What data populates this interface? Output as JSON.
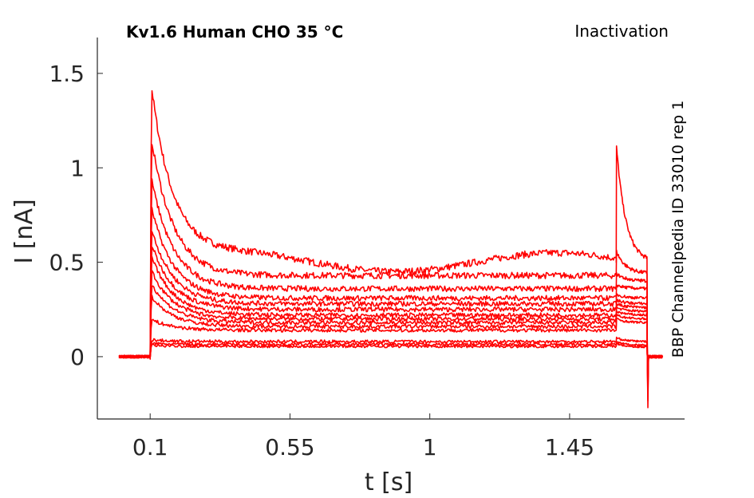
{
  "chart_data": {
    "type": "line",
    "title_left": "Kv1.6  Human  CHO  35 °C",
    "title_right": "Inactivation",
    "side_label": "BBP Channelpedia ID 33010 rep 1",
    "xlabel": "t [s]",
    "ylabel": "I [nA]",
    "xlim": [
      -0.07,
      1.82
    ],
    "ylim": [
      -0.33,
      1.69
    ],
    "x_ticks": [
      0.1,
      0.55,
      1,
      1.45
    ],
    "x_tick_labels": [
      "0.1",
      "0.55",
      "1",
      "1.45"
    ],
    "y_ticks": [
      0,
      0.5,
      1,
      1.5
    ],
    "y_tick_labels": [
      "0",
      "0.5",
      "1",
      "1.5"
    ],
    "grid": false,
    "line_color": "#ff0000",
    "protocol": {
      "baseline_start": 0.0,
      "step_on": 0.1,
      "step_off": 1.6,
      "tail_end": 1.7,
      "end": 1.75
    },
    "series": [
      {
        "peak": 1.49,
        "steady": 0.5,
        "tail_peak": 1.13,
        "tail_end": 0.5
      },
      {
        "peak": 1.2,
        "steady": 0.43,
        "tail_peak": 0.56,
        "tail_end": 0.44
      },
      {
        "peak": 0.98,
        "steady": 0.36,
        "tail_peak": 0.44,
        "tail_end": 0.4
      },
      {
        "peak": 0.82,
        "steady": 0.31,
        "tail_peak": 0.38,
        "tail_end": 0.36
      },
      {
        "peak": 0.7,
        "steady": 0.28,
        "tail_peak": 0.33,
        "tail_end": 0.31
      },
      {
        "peak": 0.62,
        "steady": 0.25,
        "tail_peak": 0.3,
        "tail_end": 0.28
      },
      {
        "peak": 0.55,
        "steady": 0.22,
        "tail_peak": 0.28,
        "tail_end": 0.26
      },
      {
        "peak": 0.47,
        "steady": 0.2,
        "tail_peak": 0.26,
        "tail_end": 0.24
      },
      {
        "peak": 0.4,
        "steady": 0.18,
        "tail_peak": 0.24,
        "tail_end": 0.22
      },
      {
        "peak": 0.33,
        "steady": 0.16,
        "tail_peak": 0.22,
        "tail_end": 0.2
      },
      {
        "peak": 0.2,
        "steady": 0.14,
        "tail_peak": 0.2,
        "tail_end": 0.18
      },
      {
        "peak": 0.09,
        "steady": 0.08,
        "tail_peak": 0.1,
        "tail_end": 0.08
      },
      {
        "peak": 0.07,
        "steady": 0.065,
        "tail_peak": 0.08,
        "tail_end": 0.06
      },
      {
        "peak": 0.06,
        "steady": 0.055,
        "tail_peak": 0.07,
        "tail_end": 0.05
      }
    ]
  }
}
